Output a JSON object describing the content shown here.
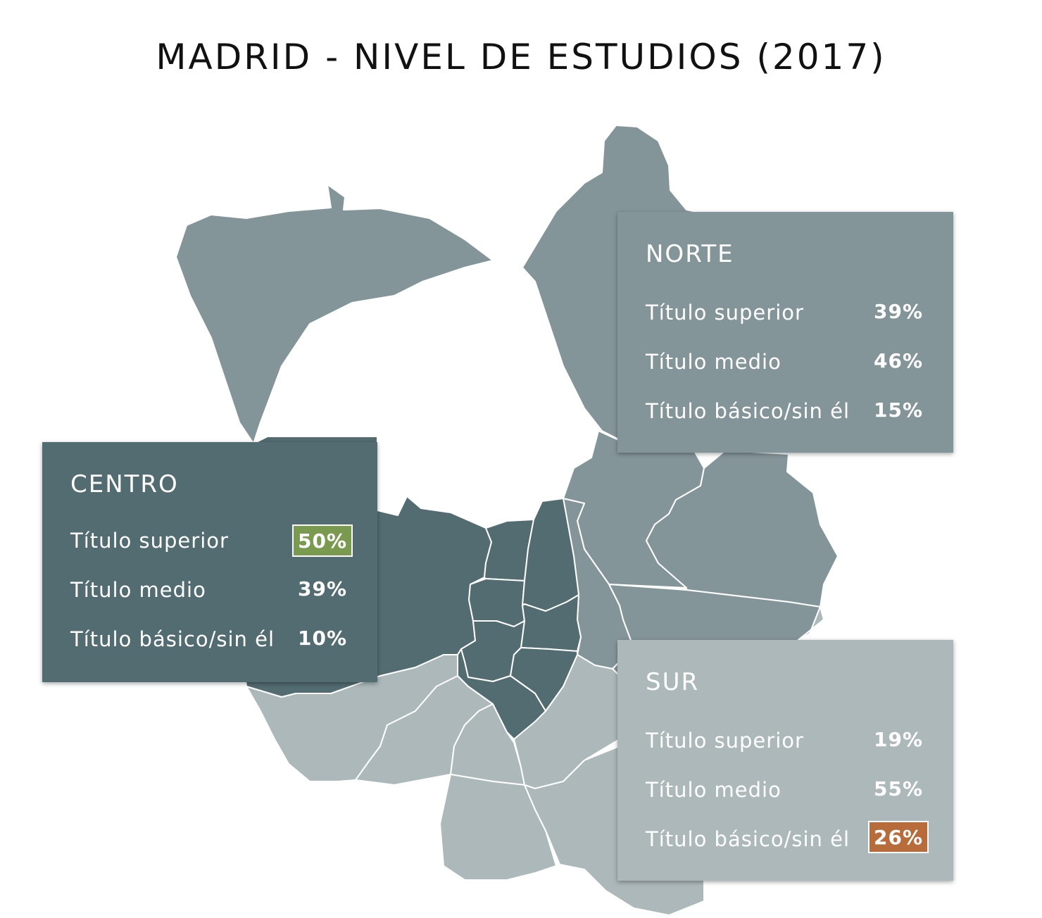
{
  "title": "MADRID - NIVEL DE ESTUDIOS (2017)",
  "colors": {
    "norte": "#84959a",
    "centro": "#526c71",
    "sur": "#acb8ba",
    "highlight_high": "#7a9a50",
    "highlight_low": "#b86c3b"
  },
  "panels": {
    "norte": {
      "title": "NORTE",
      "rows": [
        {
          "label": "Título superior",
          "value": "39%"
        },
        {
          "label": "Título medio",
          "value": "46%"
        },
        {
          "label": "Título básico/sin él",
          "value": "15%"
        }
      ]
    },
    "centro": {
      "title": "CENTRO",
      "rows": [
        {
          "label": "Título superior",
          "value": "50%",
          "highlight": "high"
        },
        {
          "label": "Título medio",
          "value": "39%"
        },
        {
          "label": "Título básico/sin él",
          "value": "10%"
        }
      ]
    },
    "sur": {
      "title": "SUR",
      "rows": [
        {
          "label": "Título superior",
          "value": "19%"
        },
        {
          "label": "Título medio",
          "value": "55%"
        },
        {
          "label": "Título básico/sin él",
          "value": "26%",
          "highlight": "low"
        }
      ]
    }
  }
}
